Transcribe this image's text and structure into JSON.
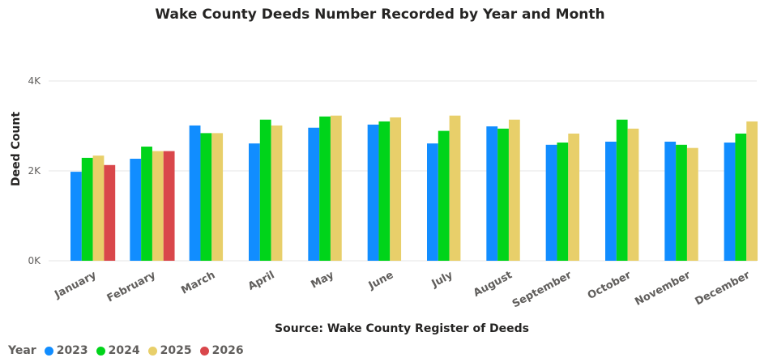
{
  "chart_data": {
    "type": "bar",
    "title": "Wake County Deeds Number Recorded by Year and Month",
    "subtitle": "Source: Wake County Register of Deeds",
    "xlabel": "",
    "ylabel": "Deed Count",
    "ylim": [
      0,
      4000
    ],
    "yticks": [
      {
        "value": 0,
        "label": "0K"
      },
      {
        "value": 2000,
        "label": "2K"
      },
      {
        "value": 4000,
        "label": "4K"
      }
    ],
    "grid": true,
    "legend_position": "bottom-left",
    "legend_title": "Year",
    "categories": [
      "January",
      "February",
      "March",
      "April",
      "May",
      "June",
      "July",
      "August",
      "September",
      "October",
      "November",
      "December"
    ],
    "series": [
      {
        "name": "2023",
        "color": "#118DFF",
        "values": [
          1980,
          2270,
          3010,
          2610,
          2960,
          3030,
          2610,
          2990,
          2580,
          2650,
          2650,
          2630
        ]
      },
      {
        "name": "2024",
        "color": "#00D41A",
        "values": [
          2290,
          2540,
          2840,
          3140,
          3210,
          3100,
          2890,
          2940,
          2630,
          3140,
          2580,
          2830
        ]
      },
      {
        "name": "2025",
        "color": "#E8CF6A",
        "values": [
          2340,
          2440,
          2840,
          3010,
          3230,
          3190,
          3230,
          3140,
          2830,
          2940,
          2510,
          3100
        ]
      },
      {
        "name": "2026",
        "color": "#D9474B",
        "values": [
          2130,
          2440,
          null,
          null,
          null,
          null,
          null,
          null,
          null,
          null,
          null,
          null
        ]
      }
    ]
  }
}
